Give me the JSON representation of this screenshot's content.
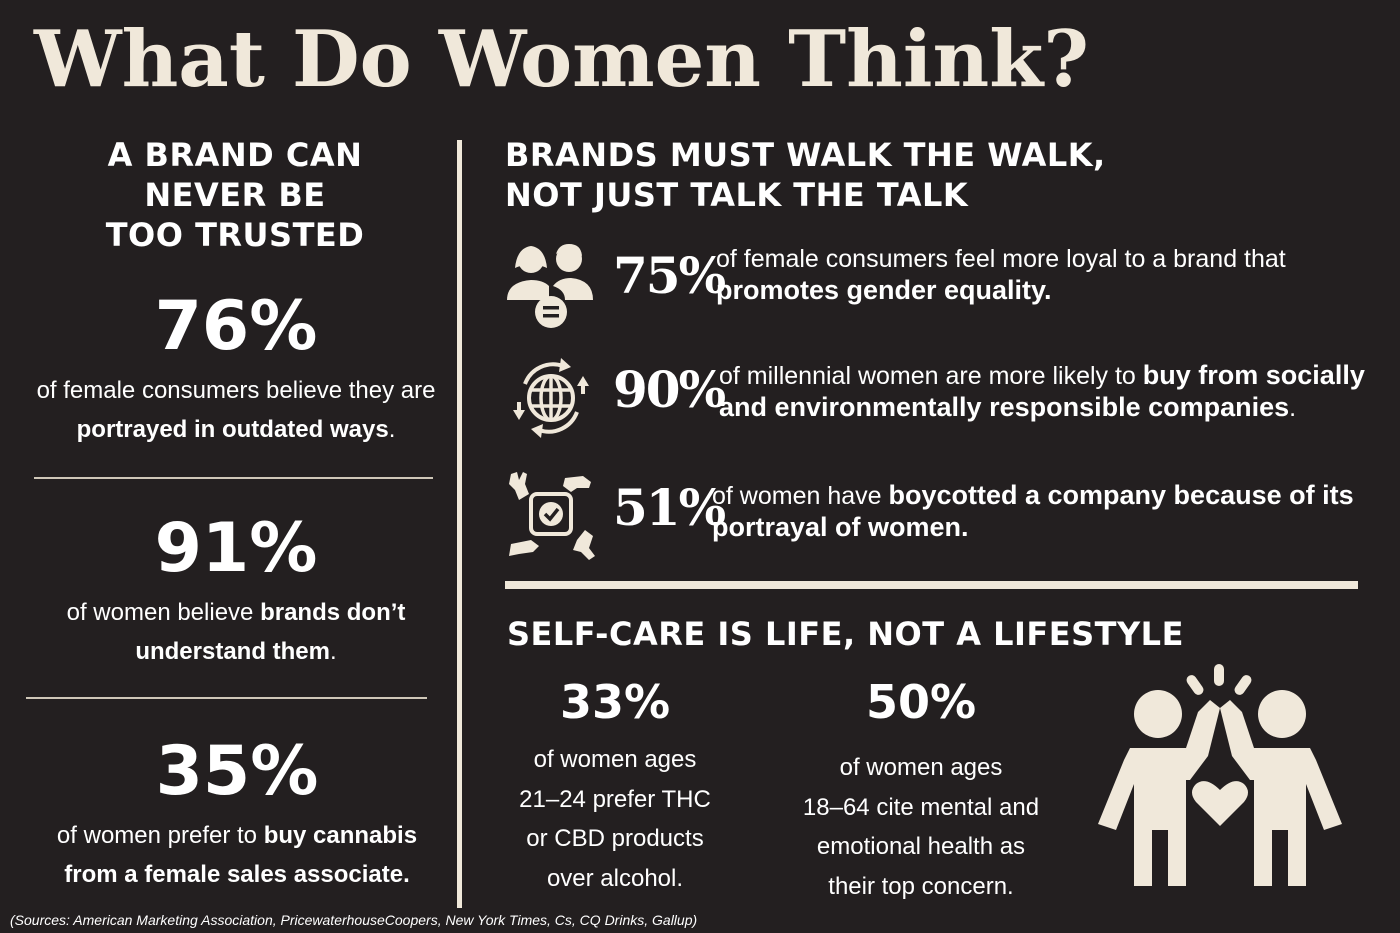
{
  "title": "What Do Women Think?",
  "left_section": {
    "heading_lines": [
      "A BRAND CAN",
      "NEVER BE",
      "TOO TRUSTED"
    ],
    "stats": [
      {
        "value": "76%",
        "pre": "of female consumers believe they are",
        "bold": "portrayed in outdated ways",
        "post": "."
      },
      {
        "value": "91%",
        "pre": "of women believe ",
        "bold": "brands don’t understand them",
        "post": "."
      },
      {
        "value": "35%",
        "pre": "of women prefer to ",
        "bold": "buy cannabis from a female sales associate.",
        "post": ""
      }
    ]
  },
  "right_section": {
    "heading_lines": [
      "BRANDS MUST WALK THE WALK,",
      "NOT JUST TALK THE TALK"
    ],
    "stats": [
      {
        "icon": "gender-equality-icon",
        "value": "75%",
        "pre": "of female consumers feel more loyal to a brand that",
        "bold": "promotes gender equality.",
        "post": ""
      },
      {
        "icon": "globe-recycle-icon",
        "value": "90%",
        "pre": "of millennial women are more likely to ",
        "bold": "buy from socially and environmentally responsible companies",
        "post": "."
      },
      {
        "icon": "boycott-hands-icon",
        "value": "51%",
        "pre": "of women have ",
        "bold": "boycotted a company because of its portrayal of women.",
        "post": ""
      }
    ]
  },
  "self_care": {
    "heading": "SELF-CARE IS LIFE, NOT A LIFESTYLE",
    "stats": [
      {
        "value": "33%",
        "lines": [
          "of women ages",
          "21–24 prefer THC",
          "or CBD products",
          "over alcohol."
        ]
      },
      {
        "value": "50%",
        "lines": [
          "of women ages",
          "18–64 cite mental and",
          "emotional health as",
          "their top concern."
        ]
      }
    ],
    "illustration_icon": "high-five-heart-icon"
  },
  "sources": "(Sources: American Marketing Association, PricewaterhouseCoopers, New York Times, Cs, CQ Drinks, Gallup)",
  "colors": {
    "background": "#231f20",
    "cream": "#f0e8da",
    "text": "#ffffff"
  }
}
